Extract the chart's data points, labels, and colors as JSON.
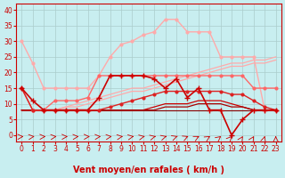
{
  "background_color": "#c8eef0",
  "grid_color": "#aacccc",
  "xlabel": "Vent moyen/en rafales ( km/h )",
  "xlabel_color": "#cc0000",
  "xlabel_fontsize": 7,
  "tick_color": "#cc0000",
  "yticks": [
    0,
    5,
    10,
    15,
    20,
    25,
    30,
    35,
    40
  ],
  "xticks": [
    0,
    1,
    2,
    3,
    4,
    5,
    6,
    7,
    8,
    9,
    10,
    11,
    12,
    13,
    14,
    15,
    16,
    17,
    18,
    19,
    20,
    21,
    22,
    23
  ],
  "ylim": [
    -2,
    42
  ],
  "xlim": [
    -0.5,
    23.5
  ],
  "series": [
    {
      "x": [
        0,
        1,
        2,
        3,
        4,
        5,
        6,
        7,
        8,
        9,
        10,
        11,
        12,
        13,
        14,
        15,
        16,
        17,
        18,
        19,
        20,
        21,
        22,
        23
      ],
      "y": [
        30,
        23,
        15,
        15,
        15,
        15,
        15,
        19,
        25,
        29,
        30,
        32,
        33,
        37,
        37,
        33,
        33,
        33,
        25,
        25,
        25,
        25,
        8,
        8
      ],
      "color": "#ffaaaa",
      "linewidth": 1.0,
      "marker": "o",
      "markersize": 2.0,
      "zorder": 3
    },
    {
      "x": [
        0,
        1,
        2,
        3,
        4,
        5,
        6,
        7,
        8,
        9,
        10,
        11,
        12,
        13,
        14,
        15,
        16,
        17,
        18,
        19,
        20,
        21,
        22,
        23
      ],
      "y": [
        15,
        8,
        8,
        11,
        11,
        11,
        12,
        19,
        19,
        19,
        19,
        19,
        19,
        19,
        19,
        19,
        19,
        19,
        19,
        19,
        19,
        15,
        15,
        15
      ],
      "color": "#ff6666",
      "linewidth": 1.0,
      "marker": "o",
      "markersize": 2.0,
      "zorder": 3
    },
    {
      "x": [
        0,
        1,
        2,
        3,
        4,
        5,
        6,
        7,
        8,
        9,
        10,
        11,
        12,
        13,
        14,
        15,
        16,
        17,
        18,
        19,
        20,
        21,
        22,
        23
      ],
      "y": [
        8,
        8,
        8,
        8,
        9,
        10,
        11,
        12,
        13,
        14,
        15,
        15,
        16,
        17,
        18,
        19,
        20,
        21,
        22,
        23,
        23,
        24,
        24,
        25
      ],
      "color": "#ffaaaa",
      "linewidth": 0.9,
      "marker": null,
      "markersize": 0,
      "zorder": 2
    },
    {
      "x": [
        0,
        1,
        2,
        3,
        4,
        5,
        6,
        7,
        8,
        9,
        10,
        11,
        12,
        13,
        14,
        15,
        16,
        17,
        18,
        19,
        20,
        21,
        22,
        23
      ],
      "y": [
        8,
        8,
        8,
        8,
        9,
        9,
        10,
        11,
        12,
        13,
        14,
        14,
        15,
        16,
        17,
        18,
        19,
        20,
        21,
        22,
        22,
        23,
        23,
        24
      ],
      "color": "#ffaaaa",
      "linewidth": 0.9,
      "marker": null,
      "markersize": 0,
      "zorder": 2
    },
    {
      "x": [
        0,
        1,
        2,
        3,
        4,
        5,
        6,
        7,
        8,
        9,
        10,
        11,
        12,
        13,
        14,
        15,
        16,
        17,
        18,
        19,
        20,
        21,
        22,
        23
      ],
      "y": [
        15,
        8,
        8,
        8,
        8,
        8,
        8,
        8,
        9,
        10,
        11,
        12,
        13,
        14,
        14,
        14,
        14,
        14,
        14,
        13,
        13,
        11,
        9,
        8
      ],
      "color": "#dd2222",
      "linewidth": 1.0,
      "marker": "o",
      "markersize": 2.0,
      "zorder": 3
    },
    {
      "x": [
        0,
        1,
        2,
        3,
        4,
        5,
        6,
        7,
        8,
        9,
        10,
        11,
        12,
        13,
        14,
        15,
        16,
        17,
        18,
        19,
        20,
        21,
        22,
        23
      ],
      "y": [
        8,
        8,
        8,
        8,
        8,
        8,
        8,
        8,
        8,
        8,
        8,
        8,
        9,
        10,
        10,
        10,
        11,
        11,
        11,
        10,
        9,
        8,
        8,
        8
      ],
      "color": "#cc0000",
      "linewidth": 0.9,
      "marker": null,
      "markersize": 0,
      "zorder": 2
    },
    {
      "x": [
        0,
        1,
        2,
        3,
        4,
        5,
        6,
        7,
        8,
        9,
        10,
        11,
        12,
        13,
        14,
        15,
        16,
        17,
        18,
        19,
        20,
        21,
        22,
        23
      ],
      "y": [
        8,
        8,
        8,
        8,
        8,
        8,
        8,
        8,
        8,
        8,
        8,
        8,
        8,
        9,
        9,
        9,
        10,
        10,
        10,
        9,
        9,
        8,
        8,
        8
      ],
      "color": "#aa0000",
      "linewidth": 0.9,
      "marker": null,
      "markersize": 0,
      "zorder": 2
    },
    {
      "x": [
        0,
        1,
        2,
        3,
        4,
        5,
        6,
        7,
        8,
        9,
        10,
        11,
        12,
        13,
        14,
        15,
        16,
        17,
        18,
        19,
        20,
        21,
        22,
        23
      ],
      "y": [
        15,
        11,
        8,
        8,
        8,
        8,
        8,
        12,
        19,
        19,
        19,
        19,
        18,
        15,
        18,
        12,
        15,
        8,
        8,
        0,
        5,
        8,
        8,
        8
      ],
      "color": "#cc0000",
      "linewidth": 1.2,
      "marker": "+",
      "markersize": 4.0,
      "zorder": 4
    },
    {
      "x": [
        0,
        1,
        2,
        3,
        4,
        5,
        6,
        7,
        8,
        9,
        10,
        11,
        12,
        13,
        14,
        15,
        16,
        17,
        18,
        19,
        20,
        21,
        22,
        23
      ],
      "y": [
        8,
        8,
        8,
        8,
        8,
        8,
        8,
        8,
        8,
        8,
        8,
        8,
        8,
        8,
        8,
        8,
        8,
        8,
        8,
        8,
        8,
        8,
        8,
        8
      ],
      "color": "#880000",
      "linewidth": 0.8,
      "marker": null,
      "markersize": 0,
      "zorder": 1
    }
  ]
}
